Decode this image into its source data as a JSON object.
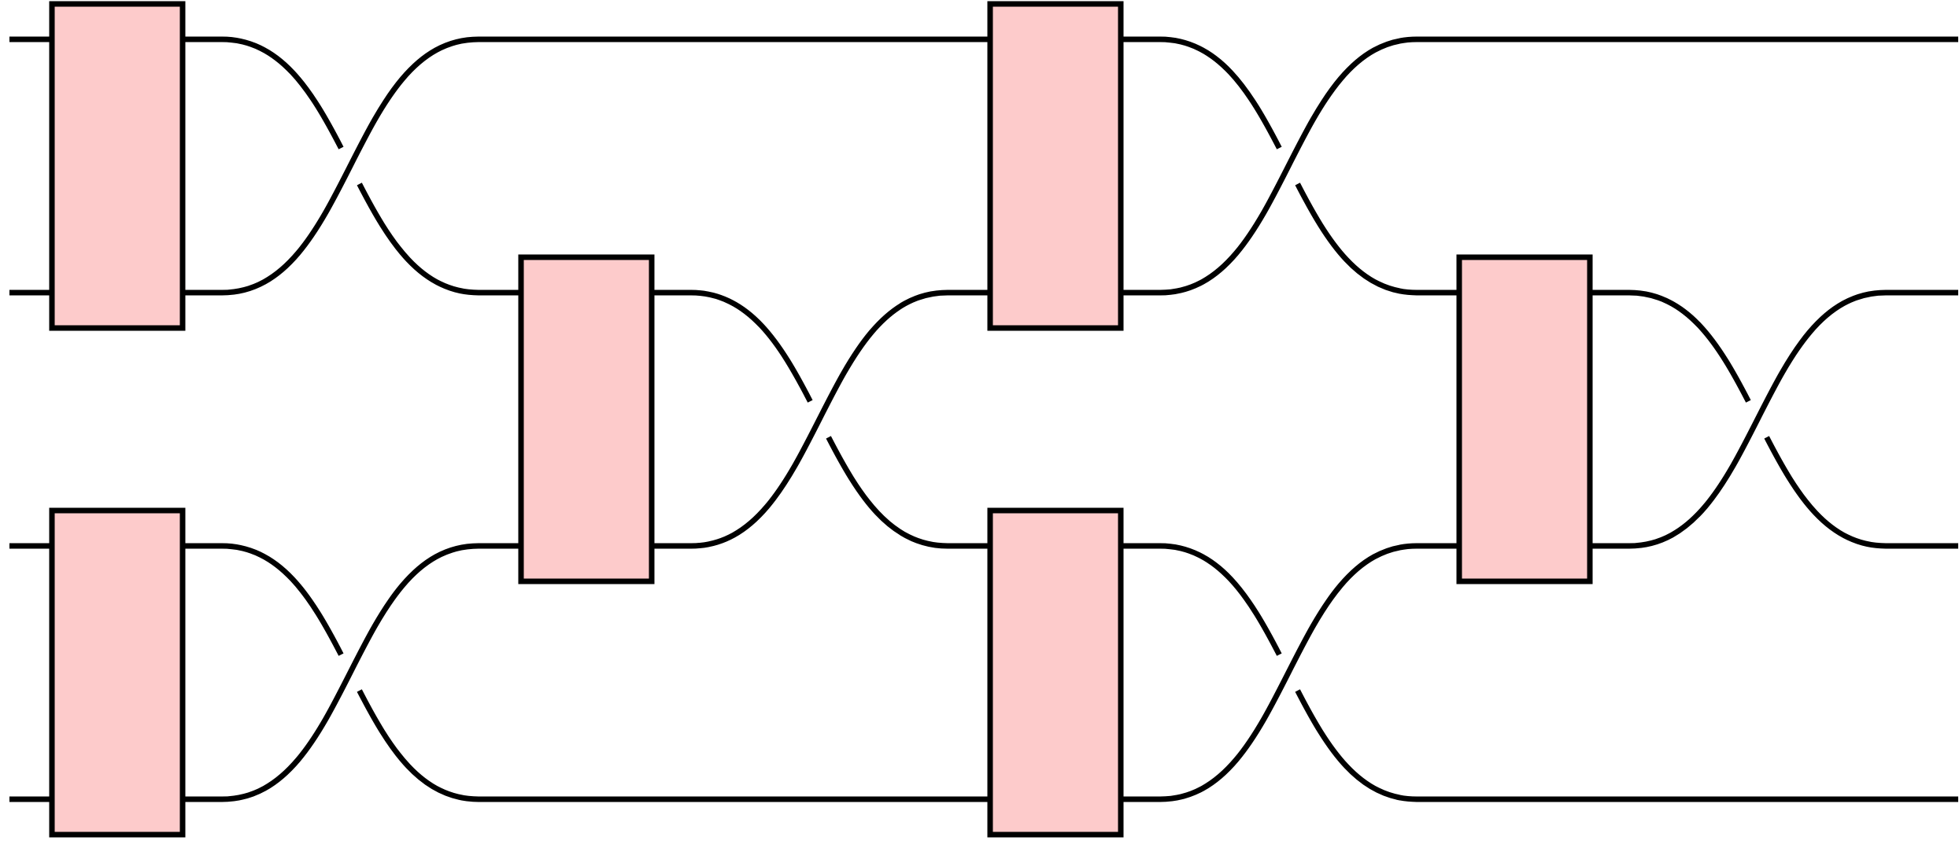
{
  "diagram": {
    "type": "braid-circuit",
    "wire_count": 4,
    "colors": {
      "wire": "#000000",
      "gate_fill": "#fdcbcb",
      "gate_stroke": "#000000",
      "background": "#ffffff"
    },
    "gates": [
      {
        "id": "gate-1",
        "column": 1,
        "wires": [
          1,
          2
        ]
      },
      {
        "id": "gate-2",
        "column": 1,
        "wires": [
          3,
          4
        ]
      },
      {
        "id": "gate-3",
        "column": 2,
        "wires": [
          2,
          3
        ]
      },
      {
        "id": "gate-4",
        "column": 3,
        "wires": [
          1,
          2
        ]
      },
      {
        "id": "gate-5",
        "column": 3,
        "wires": [
          3,
          4
        ]
      },
      {
        "id": "gate-6",
        "column": 4,
        "wires": [
          2,
          3
        ]
      }
    ],
    "crossings": [
      {
        "id": "crossing-1",
        "after_column": 1,
        "wires": [
          1,
          2
        ]
      },
      {
        "id": "crossing-2",
        "after_column": 1,
        "wires": [
          3,
          4
        ]
      },
      {
        "id": "crossing-3",
        "after_column": 2,
        "wires": [
          2,
          3
        ]
      },
      {
        "id": "crossing-4",
        "after_column": 3,
        "wires": [
          1,
          2
        ]
      },
      {
        "id": "crossing-5",
        "after_column": 3,
        "wires": [
          3,
          4
        ]
      },
      {
        "id": "crossing-6",
        "after_column": 4,
        "wires": [
          2,
          3
        ]
      }
    ]
  }
}
